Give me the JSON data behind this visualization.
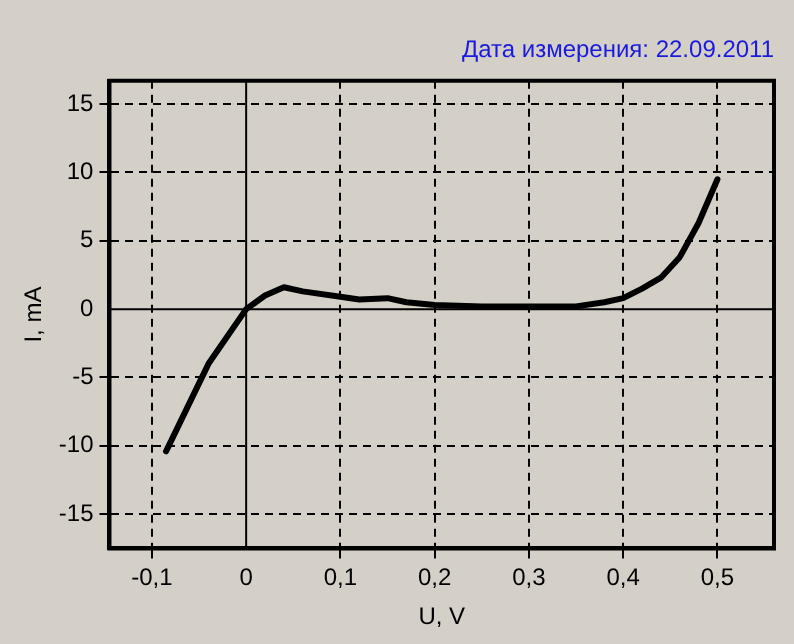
{
  "chart_data": {
    "type": "line",
    "title": "Дата измерения: 22.09.2011",
    "xlabel": "U, V",
    "ylabel": "I, mA",
    "x": [
      -0.085,
      -0.04,
      0,
      0.02,
      0.04,
      0.06,
      0.1,
      0.12,
      0.15,
      0.17,
      0.2,
      0.25,
      0.3,
      0.35,
      0.38,
      0.4,
      0.42,
      0.44,
      0.46,
      0.48,
      0.5
    ],
    "series": [
      {
        "color": "#000000",
        "values": [
          -10.4,
          -4,
          0,
          1,
          1.6,
          1.3,
          0.9,
          0.7,
          0.8,
          0.5,
          0.3,
          0.2,
          0.2,
          0.2,
          0.5,
          0.8,
          1.5,
          2.3,
          3.8,
          6.3,
          9.5
        ]
      }
    ],
    "xlim": [
      -0.145,
      0.56
    ],
    "ylim": [
      -17.5,
      16.7
    ],
    "xticks": [
      {
        "value": -0.1,
        "label": "-0,1"
      },
      0,
      {
        "value": 0.1,
        "label": "0,1"
      },
      {
        "value": 0.2,
        "label": "0,2"
      },
      {
        "value": 0.3,
        "label": "0,3"
      },
      {
        "value": 0.4,
        "label": "0,4"
      },
      {
        "value": 0.5,
        "label": "0,5"
      }
    ],
    "yticks": [
      -15,
      -10,
      -5,
      0,
      5,
      10,
      15
    ],
    "grid": true,
    "legend": false,
    "marker": "none",
    "line_style": "solid"
  }
}
